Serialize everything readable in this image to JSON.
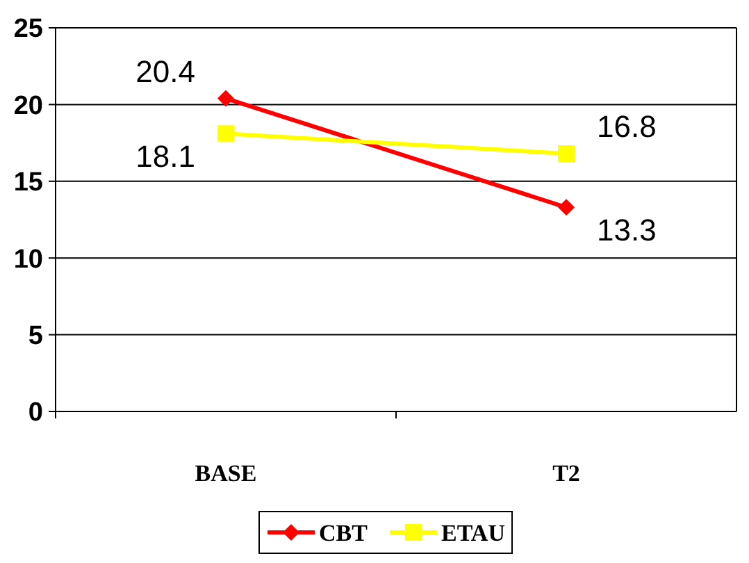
{
  "chart_data": {
    "type": "line",
    "categories": [
      "BASE",
      "T2"
    ],
    "series": [
      {
        "name": "CBT",
        "color": "#ff0000",
        "values": [
          20.4,
          13.3
        ],
        "marker": "diamond"
      },
      {
        "name": "ETAU",
        "color": "#ffff00",
        "values": [
          18.1,
          16.8
        ],
        "marker": "square"
      }
    ],
    "ylim": [
      0,
      25
    ],
    "yticks": [
      0,
      5,
      10,
      15,
      20,
      25
    ],
    "grid": "y",
    "legend": "bottom",
    "data_labels": true
  }
}
